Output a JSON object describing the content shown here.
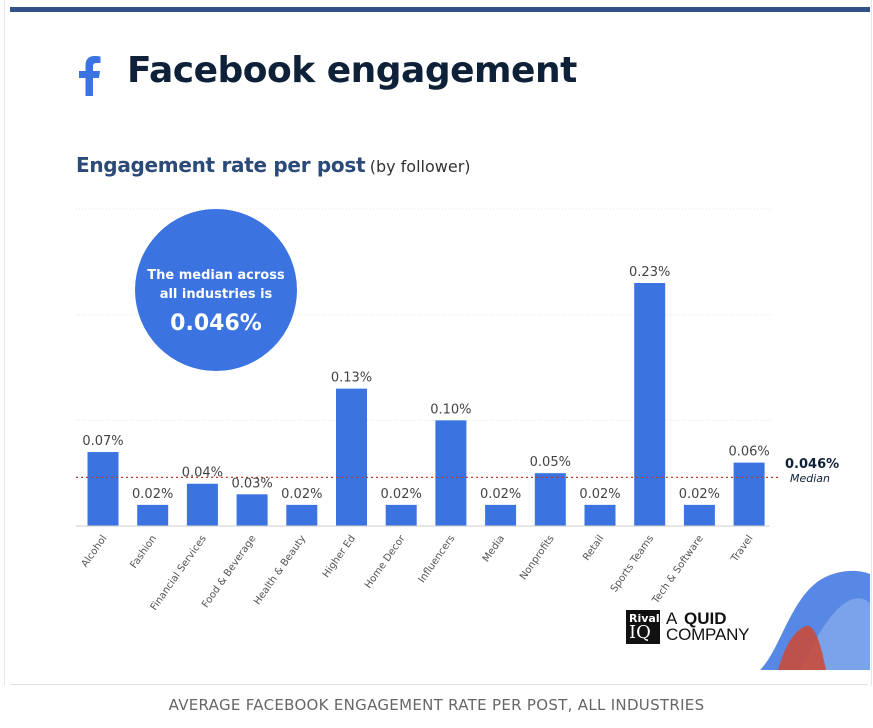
{
  "header": {
    "title": "Facebook engagement",
    "subtitle_main": "Engagement rate per post",
    "subtitle_sub": "(by follower)"
  },
  "callout": {
    "line1": "The median across",
    "line2": "all industries is",
    "value": "0.046%"
  },
  "median_label": {
    "value": "0.046%",
    "word": "Median"
  },
  "brand": {
    "box_top": "Rival",
    "box_bottom": "IQ",
    "a": "A",
    "quid": "QUID",
    "company": "COMPANY"
  },
  "footer": {
    "caption": "AVERAGE FACEBOOK ENGAGEMENT RATE PER POST, ALL INDUSTRIES"
  },
  "colors": {
    "bar": "#3b73e0",
    "title": "#0f2138",
    "subtitle": "#2b4a78",
    "median_line": "#c0392b",
    "top_bar": "#34508a"
  },
  "chart_data": {
    "type": "bar",
    "categories": [
      "Alcohol",
      "Fashion",
      "Financial Services",
      "Food & Beverage",
      "Health & Beauty",
      "Higher Ed",
      "Home Decor",
      "Influencers",
      "Media",
      "Nonprofits",
      "Retail",
      "Sports Teams",
      "Tech & Software",
      "Travel"
    ],
    "values": [
      0.07,
      0.02,
      0.04,
      0.03,
      0.02,
      0.13,
      0.02,
      0.1,
      0.02,
      0.05,
      0.02,
      0.23,
      0.02,
      0.06
    ],
    "data_labels": [
      "0.07%",
      "0.02%",
      "0.04%",
      "0.03%",
      "0.02%",
      "0.13%",
      "0.02%",
      "0.10%",
      "0.02%",
      "0.05%",
      "0.02%",
      "0.23%",
      "0.02%",
      "0.06%"
    ],
    "median": 0.046,
    "ylim": [
      0,
      0.3
    ],
    "grid": true,
    "xlabel": "",
    "ylabel": ""
  }
}
